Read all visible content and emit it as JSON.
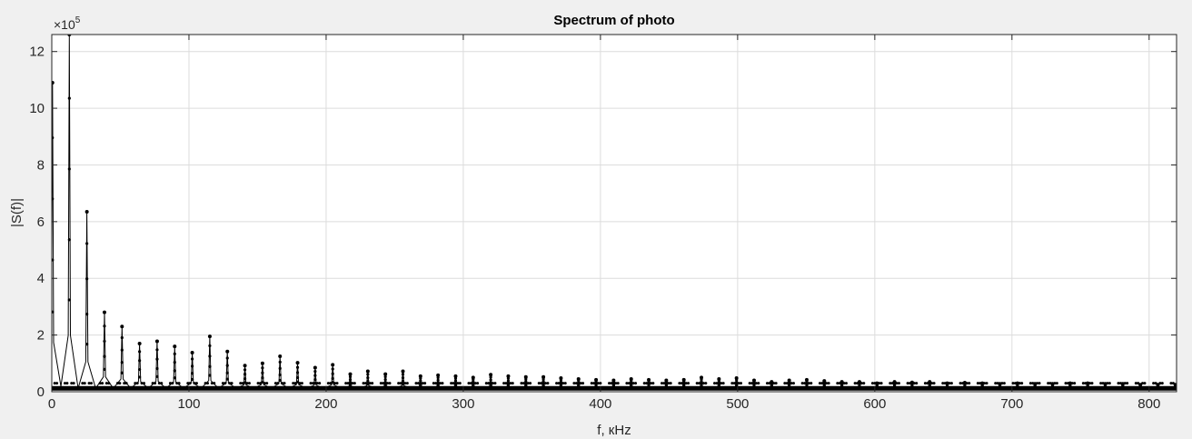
{
  "chart_data": {
    "type": "line",
    "title": "Spectrum of photo",
    "xlabel": "f, кHz",
    "ylabel": "|S(f)|",
    "y_exponent": {
      "base": "×10",
      "power": "5"
    },
    "xlim": [
      0,
      820
    ],
    "ylim": [
      0,
      12.6
    ],
    "x_ticks": [
      0,
      100,
      200,
      300,
      400,
      500,
      600,
      700,
      800
    ],
    "y_ticks": [
      0,
      2,
      4,
      6,
      8,
      10,
      12
    ],
    "grid": true,
    "marker": "dot",
    "colors": {
      "line": "#000000",
      "grid": "#dcdcdc",
      "axes_bg": "#ffffff",
      "figure_bg": "#f0f0f0",
      "axis": "#262626"
    },
    "series": [
      {
        "x": [
          0.5,
          12.8,
          25.6,
          38.4,
          51.2,
          64.0,
          76.8,
          89.6,
          102.4,
          115.2,
          128.0,
          140.8,
          153.6,
          166.4,
          179.2,
          192.0,
          204.8,
          217.6,
          230.4,
          243.2,
          256.0,
          268.8,
          281.6,
          294.4,
          307.2,
          320.0,
          332.8,
          345.6,
          358.4,
          371.2,
          384.0,
          396.8,
          409.6,
          422.4,
          435.2,
          448.0,
          460.8,
          473.6,
          486.4,
          499.2,
          512.0,
          524.8,
          537.6,
          550.4,
          563.2,
          576.0,
          588.8,
          601.6,
          614.4,
          627.2,
          640.0,
          652.8,
          665.6,
          678.4,
          691.2,
          704.0,
          716.8,
          729.6,
          742.4,
          755.2,
          768.0,
          780.8,
          793.6,
          806.4,
          819.2
        ],
        "y": [
          10.9,
          12.6,
          6.35,
          2.8,
          2.3,
          1.7,
          1.78,
          1.6,
          1.38,
          1.95,
          1.42,
          0.92,
          1.0,
          1.25,
          1.02,
          0.85,
          0.95,
          0.62,
          0.72,
          0.62,
          0.72,
          0.55,
          0.58,
          0.55,
          0.5,
          0.6,
          0.55,
          0.52,
          0.52,
          0.48,
          0.45,
          0.42,
          0.4,
          0.45,
          0.42,
          0.4,
          0.42,
          0.5,
          0.45,
          0.48,
          0.4,
          0.35,
          0.4,
          0.42,
          0.38,
          0.35,
          0.35,
          0.3,
          0.35,
          0.33,
          0.35,
          0.3,
          0.32,
          0.3,
          0.28,
          0.3,
          0.28,
          0.28,
          0.3,
          0.3,
          0.28,
          0.28,
          0.25,
          0.25,
          0.25
        ]
      }
    ]
  }
}
